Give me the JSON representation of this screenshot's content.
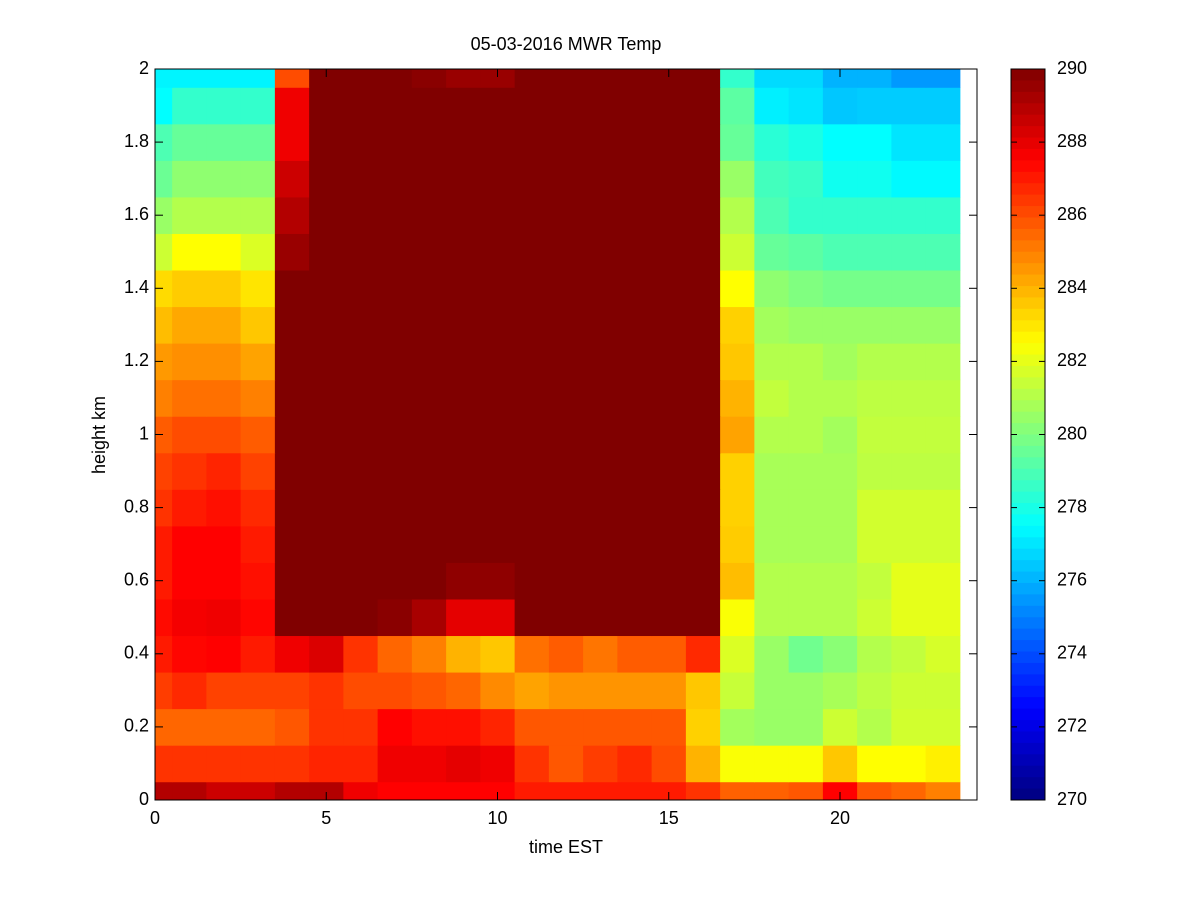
{
  "chart_data": {
    "type": "heatmap",
    "title": "05-03-2016 MWR Temp",
    "xlabel": "time EST",
    "ylabel": "height km",
    "xlim": [
      0,
      24
    ],
    "ylim": [
      0,
      2
    ],
    "xticks": [
      0,
      5,
      10,
      15,
      20
    ],
    "yticks": [
      0,
      0.2,
      0.4,
      0.6,
      0.8,
      1,
      1.2,
      1.4,
      1.6,
      1.8,
      2
    ],
    "clim": [
      270,
      290
    ],
    "cticks": [
      270,
      272,
      274,
      276,
      278,
      280,
      282,
      284,
      286,
      288,
      290
    ],
    "colormap": "jet",
    "x_edges": [
      0,
      0.5,
      1.5,
      2.5,
      3.5,
      4.5,
      5.5,
      6.5,
      7.5,
      8.5,
      9.5,
      10.5,
      11.5,
      12.5,
      13.5,
      14.5,
      15.5,
      16.5,
      17.5,
      18.5,
      19.5,
      20.5,
      21.5,
      22.5,
      23.5
    ],
    "y_edges": [
      0,
      0.05,
      0.15,
      0.25,
      0.35,
      0.45,
      0.55,
      0.65,
      0.75,
      0.85,
      0.95,
      1.05,
      1.15,
      1.25,
      1.35,
      1.45,
      1.55,
      1.65,
      1.75,
      1.85,
      1.95,
      2
    ],
    "z": [
      [
        289,
        289,
        288.5,
        288.5,
        289,
        289,
        287.8,
        287.5,
        287.5,
        287.5,
        287.5,
        287,
        287,
        287,
        287,
        287,
        286.5,
        285.6,
        285.6,
        285.8,
        287.5,
        285.8,
        285.5,
        285
      ],
      [
        286.5,
        286.5,
        286.5,
        286.5,
        286.5,
        286.8,
        286.8,
        287.8,
        287.8,
        288,
        287.8,
        286.5,
        285.8,
        286.3,
        286.7,
        286,
        284,
        282.4,
        282.4,
        282.4,
        283.6,
        282.5,
        282.5,
        282.8
      ],
      [
        285.5,
        285.5,
        285.5,
        285.5,
        285.8,
        286.5,
        286.5,
        287.5,
        287.2,
        287.2,
        286.8,
        285.8,
        285.8,
        285.8,
        285.8,
        285.8,
        283.4,
        280.7,
        280.5,
        280.5,
        281.5,
        281,
        281.6,
        281.6
      ],
      [
        286.3,
        286.7,
        286.2,
        286.2,
        286.2,
        286.5,
        286,
        286,
        285.8,
        285.5,
        284.8,
        284.3,
        284.6,
        284.6,
        284.6,
        284.6,
        283.6,
        281.4,
        280.5,
        280.5,
        280.8,
        281.2,
        281.5,
        281.5
      ],
      [
        287,
        287.4,
        287.5,
        287,
        287.8,
        288.2,
        286.5,
        285.5,
        285,
        284,
        283.6,
        285.3,
        285.7,
        285.2,
        285.7,
        285.7,
        286.7,
        281.8,
        280.5,
        279.7,
        280.2,
        281,
        281.3,
        281.7
      ],
      [
        287.3,
        287.7,
        287.8,
        287.4,
        290.5,
        290.5,
        290.5,
        289.8,
        289.2,
        288,
        288,
        290.5,
        290.5,
        290.5,
        290.5,
        290.5,
        290.5,
        282.4,
        281,
        281,
        281,
        281.5,
        282,
        282
      ],
      [
        287,
        287.5,
        287.5,
        287.2,
        290.5,
        290.5,
        290.5,
        290.5,
        290.5,
        289.7,
        289.7,
        290.5,
        290.5,
        290.5,
        290.5,
        290.5,
        290.5,
        283.8,
        281,
        281,
        281,
        281.3,
        282,
        282
      ],
      [
        287,
        287.5,
        287.5,
        287,
        290.5,
        290.5,
        290.5,
        290.5,
        290.5,
        290.5,
        290.5,
        290.5,
        290.5,
        290.5,
        290.5,
        290.5,
        290.5,
        283.5,
        280.8,
        280.8,
        280.8,
        281.6,
        281.6,
        281.6
      ],
      [
        286.5,
        287,
        287.2,
        286.7,
        290.5,
        290.5,
        290.5,
        290.5,
        290.5,
        290.5,
        290.5,
        290.5,
        290.5,
        290.5,
        290.5,
        290.5,
        290.5,
        283.4,
        280.8,
        280.8,
        280.8,
        281.6,
        281.6,
        281.6
      ],
      [
        286.2,
        286.5,
        286.8,
        286.2,
        290.5,
        290.5,
        290.5,
        290.5,
        290.5,
        290.5,
        290.5,
        290.5,
        290.5,
        290.5,
        290.5,
        290.5,
        290.5,
        283.4,
        280.8,
        280.8,
        280.8,
        281.2,
        281.2,
        281.2
      ],
      [
        285.7,
        286,
        286,
        285.7,
        290.5,
        290.5,
        290.5,
        290.5,
        290.5,
        290.5,
        290.5,
        290.5,
        290.5,
        290.5,
        290.5,
        290.5,
        290.5,
        284.3,
        281,
        281,
        280.7,
        281.3,
        281.3,
        281.3
      ],
      [
        285,
        285.3,
        285.3,
        285,
        290.5,
        290.5,
        290.5,
        290.5,
        290.5,
        290.5,
        290.5,
        290.5,
        290.5,
        290.5,
        290.5,
        290.5,
        290.5,
        284,
        281.3,
        281,
        281,
        281.2,
        281.2,
        281.2
      ],
      [
        284.5,
        284.7,
        284.7,
        284.3,
        290.5,
        290.5,
        290.5,
        290.5,
        290.5,
        290.5,
        290.5,
        290.5,
        290.5,
        290.5,
        290.5,
        290.5,
        290.5,
        283.6,
        281,
        281,
        280.7,
        281,
        281,
        281
      ],
      [
        283.8,
        284.2,
        284.2,
        283.6,
        290.5,
        290.5,
        290.5,
        290.5,
        290.5,
        290.5,
        290.5,
        290.5,
        290.5,
        290.5,
        290.5,
        290.5,
        290.5,
        283.4,
        280.7,
        280.5,
        280.5,
        280.5,
        280.5,
        280.5
      ],
      [
        283.2,
        283.5,
        283.5,
        283,
        290.5,
        290.5,
        290.5,
        290.5,
        290.5,
        290.5,
        290.5,
        290.5,
        290.5,
        290.5,
        290.5,
        290.5,
        290.5,
        282.5,
        280.3,
        280,
        279.8,
        279.8,
        279.8,
        279.8
      ],
      [
        281.5,
        282.5,
        282.5,
        281.8,
        289.5,
        290.5,
        290.5,
        290.5,
        290.5,
        290.5,
        290.5,
        290.5,
        290.5,
        290.5,
        290.5,
        290.5,
        290.5,
        281.5,
        279.5,
        279.3,
        279,
        279,
        279,
        279
      ],
      [
        280.5,
        281,
        281,
        281,
        289,
        290.5,
        290.5,
        290.5,
        290.5,
        290.5,
        290.5,
        290.5,
        290.5,
        290.5,
        290.5,
        290.5,
        290.5,
        281,
        279,
        278.5,
        278.5,
        278.5,
        278.5,
        278.5
      ],
      [
        279.6,
        280.3,
        280.3,
        280.3,
        288.5,
        290.5,
        290.5,
        290.5,
        290.5,
        290.5,
        290.5,
        290.5,
        290.5,
        290.5,
        290.5,
        290.5,
        290.5,
        280.5,
        278.8,
        278.6,
        277.8,
        277.8,
        277.4,
        277.4
      ],
      [
        279,
        279.5,
        279.5,
        279.5,
        287.8,
        290.5,
        290.5,
        290.5,
        290.5,
        290.5,
        290.5,
        290.5,
        290.5,
        290.5,
        290.5,
        290.5,
        290.5,
        279.5,
        278.3,
        278,
        277.5,
        277.5,
        277,
        277
      ],
      [
        277.5,
        278.5,
        278.5,
        278.5,
        287.8,
        290.5,
        290.5,
        290.5,
        290.5,
        290.5,
        290.5,
        290.5,
        290.5,
        290.5,
        290.5,
        290.5,
        290.5,
        279.3,
        277.2,
        277,
        276.4,
        276.5,
        276.5,
        276.5
      ],
      [
        277.3,
        277.3,
        277.3,
        277.3,
        286,
        290.5,
        290.5,
        290.5,
        289.8,
        289.5,
        289.5,
        290.5,
        290.5,
        290.5,
        290.5,
        290.5,
        290.2,
        278.5,
        276.8,
        276.8,
        276,
        276,
        275.5,
        275.5
      ]
    ]
  }
}
